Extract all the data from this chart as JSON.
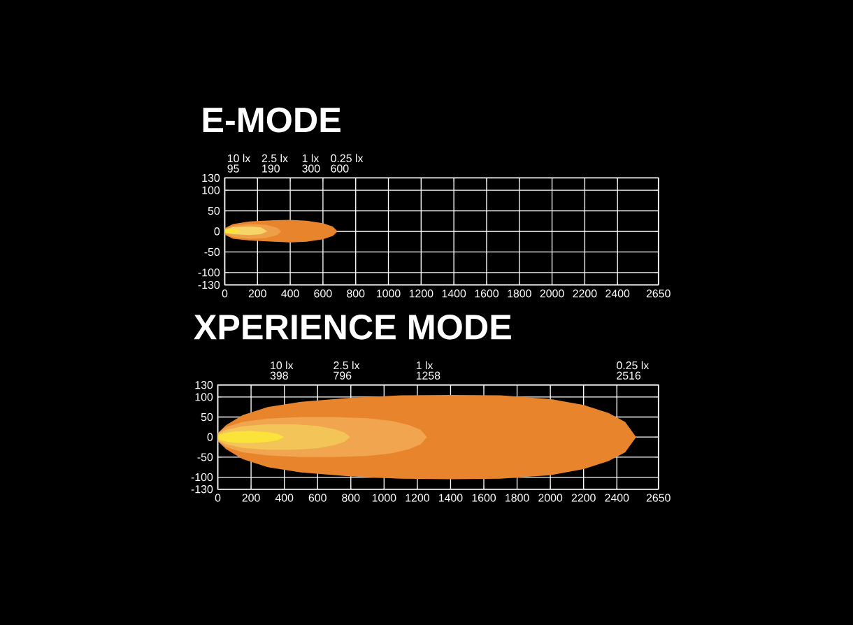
{
  "chart_data": [
    {
      "type": "area",
      "title": "E-MODE",
      "xlim": [
        0,
        2650
      ],
      "ylim": [
        -130,
        130
      ],
      "xticks": [
        0,
        200,
        400,
        600,
        800,
        1000,
        1200,
        1400,
        1600,
        1800,
        2000,
        2200,
        2400,
        2650
      ],
      "yticks": [
        -130,
        -100,
        -50,
        0,
        50,
        100,
        130
      ],
      "grid": true,
      "series": [
        {
          "color": "#e8842c",
          "x": [
            0,
            50,
            150,
            300,
            400,
            500,
            600,
            660,
            690,
            660,
            600,
            500,
            400,
            300,
            150,
            50,
            0
          ],
          "values": [
            8,
            18,
            24,
            27,
            28,
            26,
            20,
            12,
            0,
            -11,
            -19,
            -25,
            -27,
            -25,
            -22,
            -18,
            -8
          ]
        },
        {
          "color": "#ee9f48",
          "x": [
            0,
            50,
            150,
            250,
            320,
            345,
            320,
            250,
            150,
            50,
            0
          ],
          "values": [
            6,
            14,
            18,
            16,
            9,
            0,
            -9,
            -16,
            -18,
            -14,
            -6
          ]
        },
        {
          "color": "#f7d468",
          "x": [
            0,
            50,
            150,
            220,
            260,
            220,
            150,
            50,
            0
          ],
          "values": [
            5,
            10,
            12,
            10,
            0,
            -7,
            -9,
            -7,
            -4
          ]
        },
        {
          "color": "#fbe33a",
          "x": [
            0,
            30,
            70,
            100,
            70,
            30,
            0
          ],
          "values": [
            3,
            6,
            5,
            0,
            -4,
            -5,
            -3
          ]
        }
      ],
      "annotations": [
        "10 lx",
        "95",
        "2.5 lx",
        "190",
        "1 lx",
        "300",
        "0.25 lx",
        "600"
      ]
    },
    {
      "type": "area",
      "title": "XPERIENCE MODE",
      "xlim": [
        0,
        2650
      ],
      "ylim": [
        -130,
        130
      ],
      "xticks": [
        0,
        200,
        400,
        600,
        800,
        1000,
        1200,
        1400,
        1600,
        1800,
        2000,
        2200,
        2400,
        2650
      ],
      "yticks": [
        -130,
        -100,
        -50,
        0,
        50,
        100,
        130
      ],
      "grid": true,
      "series": [
        {
          "color": "#e8842c",
          "x": [
            0,
            50,
            150,
            300,
            500,
            800,
            1100,
            1400,
            1700,
            2000,
            2200,
            2350,
            2450,
            2516,
            2450,
            2350,
            2200,
            2000,
            1700,
            1400,
            1100,
            800,
            500,
            300,
            150,
            50,
            0
          ],
          "values": [
            10,
            30,
            55,
            75,
            88,
            98,
            104,
            105,
            104,
            95,
            80,
            60,
            38,
            0,
            -38,
            -60,
            -80,
            -95,
            -104,
            -105,
            -104,
            -98,
            -88,
            -75,
            -55,
            -30,
            -10
          ]
        },
        {
          "color": "#f0a54e",
          "x": [
            0,
            50,
            150,
            300,
            500,
            700,
            900,
            1050,
            1150,
            1220,
            1258,
            1220,
            1150,
            1050,
            900,
            700,
            500,
            300,
            150,
            50,
            0
          ],
          "values": [
            10,
            25,
            38,
            46,
            50,
            50,
            47,
            40,
            30,
            18,
            0,
            -18,
            -30,
            -40,
            -47,
            -50,
            -50,
            -46,
            -38,
            -25,
            -10
          ]
        },
        {
          "color": "#f3c457",
          "x": [
            0,
            50,
            150,
            300,
            450,
            600,
            700,
            760,
            796,
            760,
            700,
            600,
            450,
            300,
            150,
            50,
            0
          ],
          "values": [
            8,
            18,
            27,
            32,
            32,
            28,
            20,
            12,
            0,
            -12,
            -20,
            -28,
            -32,
            -32,
            -27,
            -18,
            -8
          ]
        },
        {
          "color": "#fbe33a",
          "x": [
            0,
            50,
            100,
            200,
            300,
            360,
            398,
            360,
            300,
            200,
            100,
            50,
            0
          ],
          "values": [
            5,
            11,
            14,
            15,
            12,
            8,
            0,
            -8,
            -12,
            -15,
            -14,
            -11,
            -5
          ]
        }
      ],
      "annotations": [
        "10 lx",
        "398",
        "2.5 lx",
        "796",
        "1 lx",
        "1258",
        "0.25 lx",
        "2516"
      ]
    }
  ]
}
